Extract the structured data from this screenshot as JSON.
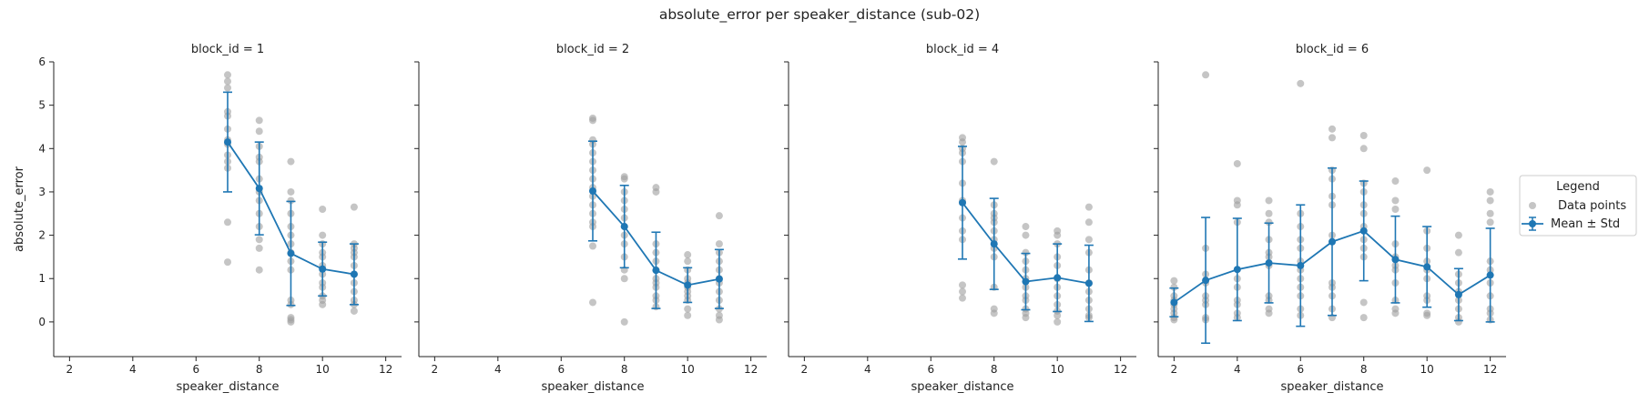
{
  "chart_data": {
    "title": "absolute_error per speaker_distance (sub-02)",
    "type": "scatter",
    "xlabel": "speaker_distance",
    "ylabel": "absolute_error",
    "xlim": [
      1.5,
      12.5
    ],
    "ylim": [
      -0.8,
      6.0
    ],
    "xticks": [
      2,
      4,
      6,
      8,
      10,
      12
    ],
    "yticks": [
      0,
      1,
      2,
      3,
      4,
      5,
      6
    ],
    "legend": {
      "title": "Legend",
      "placement": "right",
      "entries": [
        "Data points",
        "Mean ± Std"
      ]
    },
    "colors": {
      "points": "#9e9e9e",
      "mean": "#1f77b4"
    },
    "panels": [
      {
        "title": "block_id = 1",
        "mean": [
          [
            7,
            4.15,
            1.15
          ],
          [
            8,
            3.08,
            1.07
          ],
          [
            9,
            1.58,
            1.2
          ],
          [
            10,
            1.22,
            0.62
          ],
          [
            11,
            1.1,
            0.7
          ]
        ],
        "points": [
          [
            7,
            [
              5.7,
              5.55,
              5.4,
              4.85,
              4.75,
              4.45,
              4.2,
              4.1,
              3.85,
              3.7,
              3.55,
              2.3,
              1.38
            ]
          ],
          [
            8,
            [
              4.65,
              4.4,
              4.05,
              3.8,
              3.7,
              3.3,
              3.0,
              2.8,
              2.5,
              2.2,
              1.9,
              1.7,
              1.2
            ]
          ],
          [
            9,
            [
              3.7,
              3.0,
              2.8,
              2.5,
              2.2,
              2.0,
              1.8,
              1.6,
              1.4,
              1.2,
              0.5,
              0.4,
              0.1,
              0.05,
              0.0
            ]
          ],
          [
            10,
            [
              2.6,
              2.0,
              1.8,
              1.6,
              1.5,
              1.3,
              1.1,
              0.9,
              0.8,
              0.6,
              0.5,
              0.4
            ]
          ],
          [
            11,
            [
              2.65,
              1.8,
              1.7,
              1.6,
              1.5,
              1.3,
              1.1,
              0.9,
              0.7,
              0.5,
              0.4,
              0.25
            ]
          ]
        ]
      },
      {
        "title": "block_id = 2",
        "mean": [
          [
            7,
            3.02,
            1.15
          ],
          [
            8,
            2.2,
            0.95
          ],
          [
            9,
            1.19,
            0.88
          ],
          [
            10,
            0.85,
            0.4
          ],
          [
            11,
            0.99,
            0.68
          ]
        ],
        "points": [
          [
            7,
            [
              4.7,
              4.65,
              4.2,
              4.1,
              3.9,
              3.7,
              3.5,
              3.3,
              3.1,
              2.9,
              2.7,
              2.5,
              2.3,
              2.2,
              1.75,
              0.45
            ]
          ],
          [
            8,
            [
              3.35,
              3.3,
              3.0,
              2.8,
              2.6,
              2.4,
              2.2,
              2.0,
              1.8,
              1.5,
              1.2,
              1.0,
              0.0
            ]
          ],
          [
            9,
            [
              3.1,
              3.0,
              1.8,
              1.6,
              1.4,
              1.2,
              1.0,
              0.9,
              0.8,
              0.6,
              0.5,
              0.35
            ]
          ],
          [
            10,
            [
              1.55,
              1.4,
              1.2,
              1.0,
              0.9,
              0.8,
              0.7,
              0.6,
              0.5,
              0.3,
              0.15
            ]
          ],
          [
            11,
            [
              2.45,
              1.8,
              1.6,
              1.4,
              1.2,
              1.0,
              0.9,
              0.7,
              0.5,
              0.3,
              0.15,
              0.05
            ]
          ]
        ]
      },
      {
        "title": "block_id = 4",
        "mean": [
          [
            7,
            2.75,
            1.3
          ],
          [
            8,
            1.8,
            1.05
          ],
          [
            9,
            0.93,
            0.65
          ],
          [
            10,
            1.02,
            0.78
          ],
          [
            11,
            0.89,
            0.88
          ]
        ],
        "points": [
          [
            7,
            [
              4.25,
              4.15,
              4.0,
              3.9,
              3.7,
              3.2,
              2.8,
              2.4,
              2.1,
              1.9,
              0.85,
              0.7,
              0.55
            ]
          ],
          [
            8,
            [
              3.7,
              2.7,
              2.5,
              2.4,
              2.3,
              2.1,
              1.9,
              1.7,
              1.5,
              0.8,
              0.3,
              0.2
            ]
          ],
          [
            9,
            [
              2.2,
              2.0,
              1.6,
              1.4,
              1.2,
              1.0,
              0.8,
              0.6,
              0.5,
              0.3,
              0.2,
              0.1
            ]
          ],
          [
            10,
            [
              2.1,
              2.0,
              1.8,
              1.5,
              1.3,
              1.0,
              0.8,
              0.6,
              0.4,
              0.25,
              0.15,
              0.0
            ]
          ],
          [
            11,
            [
              2.65,
              2.3,
              1.9,
              1.6,
              1.2,
              0.9,
              0.7,
              0.5,
              0.3,
              0.15,
              0.1
            ]
          ]
        ]
      },
      {
        "title": "block_id = 6",
        "mean": [
          [
            2,
            0.45,
            0.33
          ],
          [
            3,
            0.96,
            1.45
          ],
          [
            4,
            1.21,
            1.18
          ],
          [
            5,
            1.36,
            0.92
          ],
          [
            6,
            1.3,
            1.4
          ],
          [
            7,
            1.85,
            1.7
          ],
          [
            8,
            2.1,
            1.15
          ],
          [
            9,
            1.44,
            1.0
          ],
          [
            10,
            1.27,
            0.93
          ],
          [
            11,
            0.63,
            0.6
          ],
          [
            12,
            1.08,
            1.08
          ]
        ],
        "points": [
          [
            2,
            [
              0.95,
              0.8,
              0.6,
              0.5,
              0.4,
              0.3,
              0.2,
              0.1,
              0.05
            ]
          ],
          [
            3,
            [
              5.7,
              1.7,
              1.1,
              0.9,
              0.6,
              0.5,
              0.4,
              0.1,
              0.05
            ]
          ],
          [
            4,
            [
              3.65,
              2.8,
              2.7,
              2.3,
              1.0,
              0.8,
              0.5,
              0.4,
              0.2,
              0.1
            ]
          ],
          [
            5,
            [
              2.8,
              2.5,
              2.3,
              1.9,
              1.6,
              1.5,
              1.3,
              0.6,
              0.5,
              0.3,
              0.2
            ]
          ],
          [
            6,
            [
              5.5,
              2.5,
              2.2,
              1.9,
              1.7,
              1.4,
              1.2,
              1.0,
              0.8,
              0.6,
              0.3,
              0.15
            ]
          ],
          [
            7,
            [
              4.45,
              4.25,
              3.5,
              3.3,
              2.9,
              2.7,
              2.0,
              0.9,
              0.8,
              0.6,
              0.3,
              0.1
            ]
          ],
          [
            8,
            [
              4.3,
              4.0,
              3.2,
              3.0,
              2.7,
              2.5,
              2.2,
              1.9,
              1.7,
              1.5,
              0.45,
              0.1
            ]
          ],
          [
            9,
            [
              3.25,
              2.8,
              2.6,
              1.8,
              1.5,
              1.3,
              1.2,
              0.9,
              0.5,
              0.3,
              0.2
            ]
          ],
          [
            10,
            [
              3.5,
              2.1,
              1.7,
              1.4,
              1.2,
              1.0,
              0.6,
              0.5,
              0.2,
              0.15
            ]
          ],
          [
            11,
            [
              2.0,
              1.6,
              1.1,
              0.9,
              0.7,
              0.5,
              0.3,
              0.1,
              0.0
            ]
          ],
          [
            12,
            [
              3.0,
              2.8,
              2.5,
              2.3,
              1.4,
              1.2,
              0.9,
              0.6,
              0.3,
              0.2,
              0.05
            ]
          ]
        ]
      }
    ]
  }
}
